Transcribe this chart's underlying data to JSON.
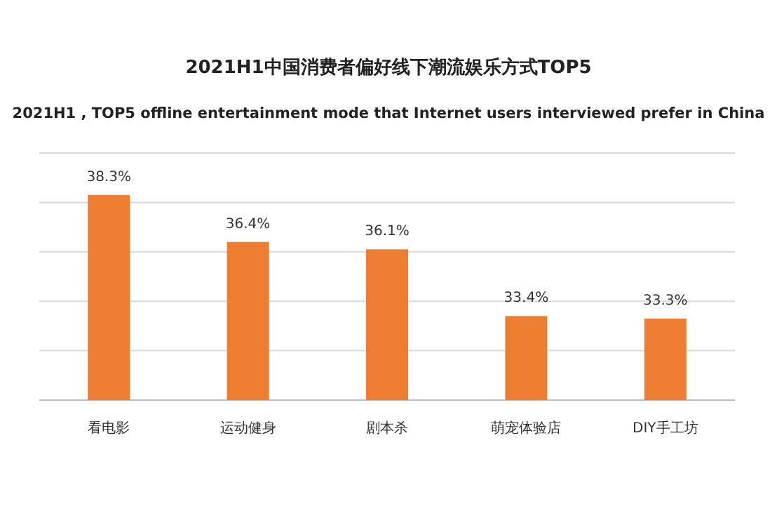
{
  "chart_data": {
    "type": "bar",
    "title": "2021H1中国消费者偏好线下潮流娱乐方式TOP5",
    "subtitle": "2021H1 , TOP5 offline entertainment mode that Internet users interviewed prefer in China",
    "categories": [
      "看电影",
      "运动健身",
      "剧本杀",
      "萌宠体验店",
      "DIY手工坊"
    ],
    "values": [
      38.3,
      36.4,
      36.1,
      33.4,
      33.3
    ],
    "value_labels": [
      "38.3%",
      "36.4%",
      "36.1%",
      "33.4%",
      "33.3%"
    ],
    "color": "#ed7d31",
    "ylim": [
      30,
      40
    ],
    "yticks": [
      {
        "value": 32,
        "label": null
      },
      {
        "value": 34,
        "label": null
      },
      {
        "value": 36,
        "label": null
      },
      {
        "value": 38,
        "label": null
      },
      {
        "value": 40,
        "label": null
      }
    ],
    "grid": "y"
  }
}
